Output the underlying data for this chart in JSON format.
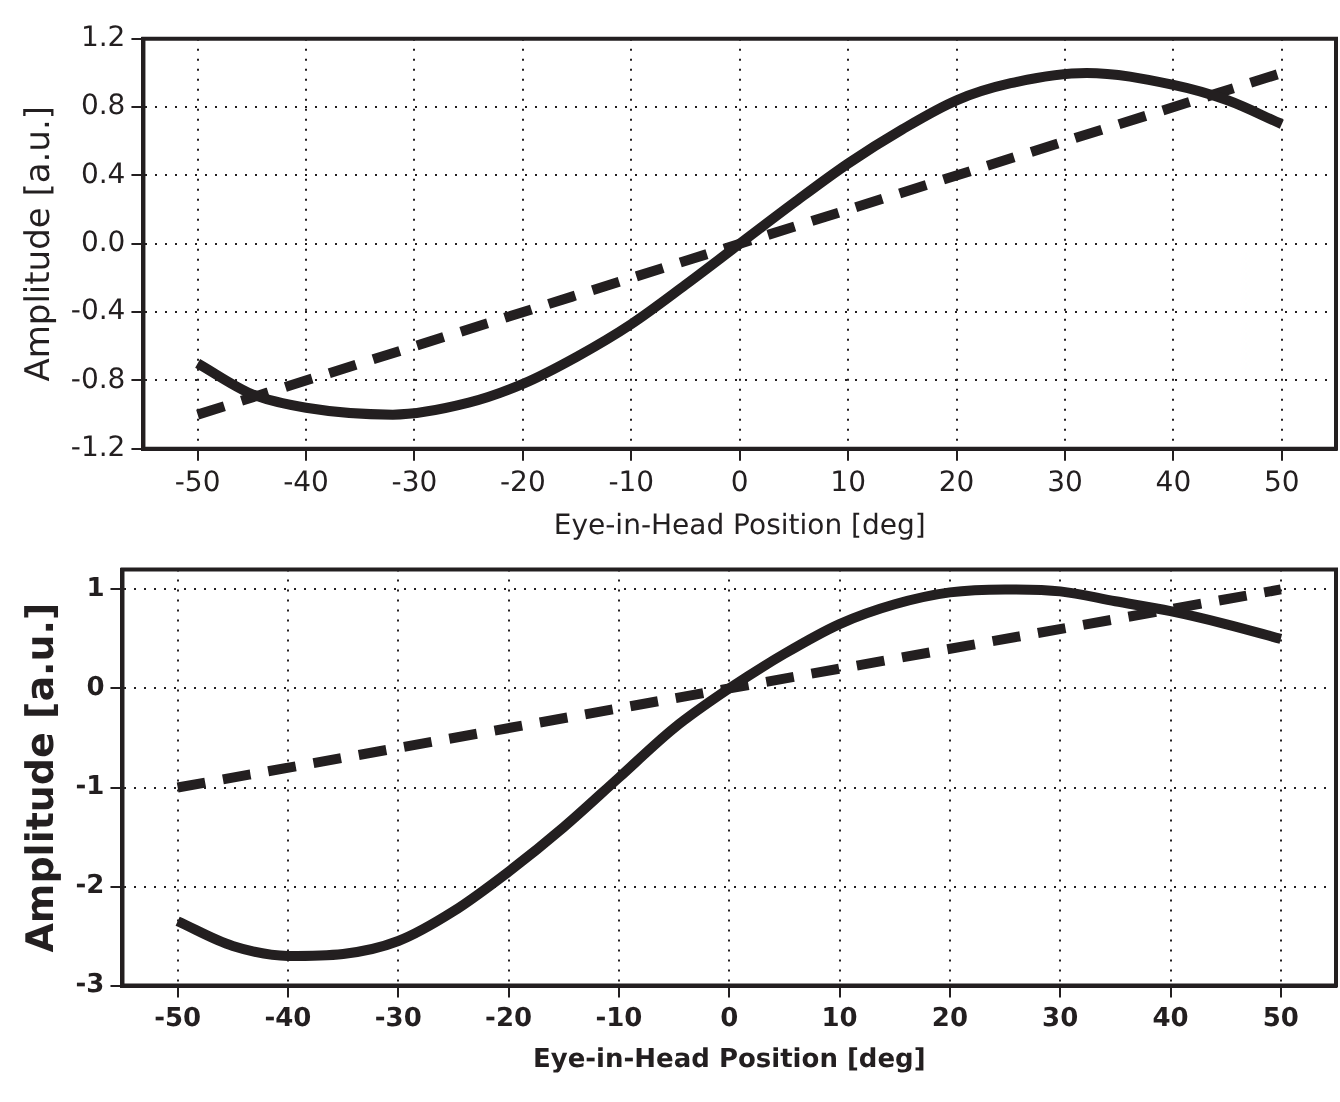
{
  "chart_data": [
    {
      "type": "line",
      "xlabel": "Eye-in-Head Position [deg]",
      "ylabel": "Amplitude [a.u.]",
      "xlim": [
        -55,
        55
      ],
      "xticks": [
        -50,
        -40,
        -30,
        -20,
        -10,
        0,
        10,
        20,
        30,
        40,
        50
      ],
      "ylim": [
        -1.2,
        1.2
      ],
      "yticks": [
        {
          "value": -1.2,
          "label": "-1.2"
        },
        {
          "value": -0.8,
          "label": "-0.8"
        },
        {
          "value": -0.4,
          "label": "-0.4"
        },
        {
          "value": 0,
          "label": "0.0"
        },
        {
          "value": 0.4,
          "label": "0.4"
        },
        {
          "value": 0.8,
          "label": "0.8"
        },
        {
          "value": 1.2,
          "label": "1.2"
        }
      ],
      "grid": true,
      "legend": false,
      "marker": "none",
      "series": [
        {
          "color": "#231f20",
          "line_style": "solid",
          "x": [
            -50,
            -45,
            -40,
            -32,
            -25,
            -20,
            -15,
            -10,
            -5,
            0,
            5,
            10,
            15,
            20,
            25,
            32,
            40,
            45,
            50
          ],
          "values": [
            -0.7,
            -0.88,
            -0.96,
            -1.0,
            -0.93,
            -0.82,
            -0.66,
            -0.47,
            -0.24,
            0,
            0.24,
            0.47,
            0.67,
            0.84,
            0.94,
            1.0,
            0.93,
            0.84,
            0.7
          ]
        },
        {
          "color": "#231f20",
          "line_style": "dashed",
          "x": [
            -50,
            50
          ],
          "values": [
            -1,
            1
          ]
        }
      ]
    },
    {
      "type": "line",
      "xlabel": "Eye-in-Head Position [deg]",
      "ylabel": "Amplitude [a.u.]",
      "xlim": [
        -55,
        55
      ],
      "xticks": [
        -50,
        -40,
        -30,
        -20,
        -10,
        0,
        10,
        20,
        30,
        40,
        50
      ],
      "ylim": [
        -3,
        1.2
      ],
      "yticks": [
        -3,
        -2,
        -1,
        0,
        1
      ],
      "grid": true,
      "legend": false,
      "marker": "none",
      "series": [
        {
          "color": "#231f20",
          "line_style": "solid",
          "x": [
            -50,
            -45,
            -40,
            -35,
            -30,
            -25,
            -20,
            -15,
            -10,
            -5,
            0,
            5,
            10,
            15,
            20,
            25,
            30,
            35,
            40,
            45,
            50
          ],
          "values": [
            -2.35,
            -2.6,
            -2.7,
            -2.68,
            -2.55,
            -2.25,
            -1.85,
            -1.4,
            -0.9,
            -0.4,
            0,
            0.35,
            0.65,
            0.85,
            0.97,
            1.0,
            0.98,
            0.88,
            0.78,
            0.65,
            0.5
          ]
        },
        {
          "color": "#231f20",
          "line_style": "dashed",
          "x": [
            -50,
            50
          ],
          "values": [
            -1,
            1
          ]
        }
      ]
    }
  ]
}
